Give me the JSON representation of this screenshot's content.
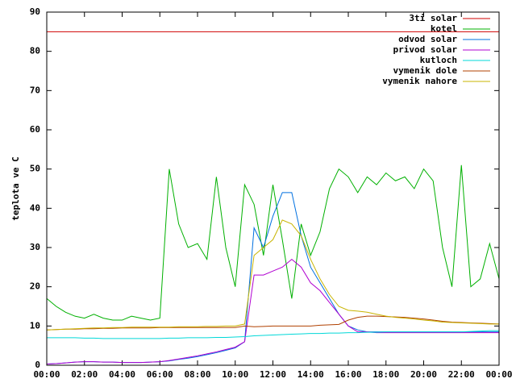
{
  "chart_data": {
    "type": "line",
    "ylabel": "teplota ve C",
    "x": [
      0,
      0.5,
      1,
      1.5,
      2,
      2.5,
      3,
      3.5,
      4,
      4.5,
      5,
      5.5,
      6,
      6.5,
      7,
      7.5,
      8,
      8.5,
      9,
      9.5,
      10,
      10.5,
      11,
      11.5,
      12,
      12.5,
      13,
      13.5,
      14,
      14.5,
      15,
      15.5,
      16,
      16.5,
      17,
      17.5,
      18,
      18.5,
      19,
      19.5,
      20,
      20.5,
      21,
      21.5,
      22,
      22.5,
      23,
      23.5,
      24
    ],
    "xlim": [
      0,
      24
    ],
    "xticks": [
      {
        "value": 0,
        "label": "00:00"
      },
      {
        "value": 2,
        "label": "02:00"
      },
      {
        "value": 4,
        "label": "04:00"
      },
      {
        "value": 6,
        "label": "06:00"
      },
      {
        "value": 8,
        "label": "08:00"
      },
      {
        "value": 10,
        "label": "10:00"
      },
      {
        "value": 12,
        "label": "12:00"
      },
      {
        "value": 14,
        "label": "14:00"
      },
      {
        "value": 16,
        "label": "16:00"
      },
      {
        "value": 18,
        "label": "18:00"
      },
      {
        "value": 20,
        "label": "20:00"
      },
      {
        "value": 22,
        "label": "22:00"
      },
      {
        "value": 24,
        "label": "00:00"
      }
    ],
    "ylim": [
      0,
      90
    ],
    "yticks": [
      0,
      10,
      20,
      30,
      40,
      50,
      60,
      70,
      80,
      90
    ],
    "legend": "top-right",
    "series": [
      {
        "name": "3ti solar",
        "color": "#d00000",
        "values": [
          85,
          85,
          85,
          85,
          85,
          85,
          85,
          85,
          85,
          85,
          85,
          85,
          85,
          85,
          85,
          85,
          85,
          85,
          85,
          85,
          85,
          85,
          85,
          85,
          85,
          85,
          85,
          85,
          85,
          85,
          85,
          85,
          85,
          85,
          85,
          85,
          85,
          85,
          85,
          85,
          85,
          85,
          85,
          85,
          85,
          85,
          85,
          85,
          85
        ]
      },
      {
        "name": "kotel",
        "color": "#00b000",
        "values": [
          17,
          15,
          13.5,
          12.5,
          12,
          13,
          12,
          11.5,
          11.5,
          12.5,
          12,
          11.5,
          12,
          50,
          36,
          30,
          31,
          27,
          48,
          30,
          20,
          46,
          41,
          28,
          46,
          32,
          17,
          36,
          28,
          34,
          45,
          50,
          48,
          44,
          48,
          46,
          49,
          47,
          48,
          45,
          50,
          47,
          30,
          20,
          51,
          20,
          22,
          31,
          22
        ]
      },
      {
        "name": "odvod solar",
        "color": "#0070e0",
        "values": [
          0.3,
          0.4,
          0.6,
          0.8,
          0.9,
          0.9,
          0.8,
          0.8,
          0.7,
          0.7,
          0.7,
          0.8,
          0.9,
          1.1,
          1.5,
          1.8,
          2.2,
          2.7,
          3.2,
          3.8,
          4.4,
          6,
          35,
          30,
          38,
          44,
          44,
          33,
          25,
          21,
          17,
          13,
          10,
          9,
          8.5,
          8.5,
          8.5,
          8.5,
          8.5,
          8.5,
          8.5,
          8.5,
          8.5,
          8.5,
          8.5,
          8.5,
          8.5,
          8.5,
          8.5
        ]
      },
      {
        "name": "privod solar",
        "color": "#b000d0",
        "values": [
          0.3,
          0.4,
          0.6,
          0.8,
          0.9,
          0.9,
          0.8,
          0.8,
          0.7,
          0.7,
          0.7,
          0.8,
          0.9,
          1.2,
          1.6,
          2,
          2.4,
          2.9,
          3.4,
          4,
          4.6,
          6,
          23,
          23,
          24,
          25,
          27,
          25,
          21,
          19,
          16,
          13,
          10,
          8.5,
          8.5,
          8.3,
          8.3,
          8.3,
          8.3,
          8.3,
          8.3,
          8.3,
          8.3,
          8.3,
          8.3,
          8.3,
          8.3,
          8.3,
          8.3
        ]
      },
      {
        "name": "kutloch",
        "color": "#00d8d8",
        "values": [
          7,
          7,
          7,
          7,
          6.9,
          6.9,
          6.8,
          6.8,
          6.8,
          6.8,
          6.8,
          6.8,
          6.8,
          6.9,
          6.9,
          7,
          7,
          7,
          7.1,
          7.1,
          7.2,
          7.3,
          7.5,
          7.6,
          7.7,
          7.8,
          7.9,
          8,
          8.1,
          8.1,
          8.2,
          8.2,
          8.3,
          8.3,
          8.4,
          8.4,
          8.5,
          8.5,
          8.5,
          8.5,
          8.5,
          8.5,
          8.5,
          8.5,
          8.5,
          8.6,
          8.7,
          8.8,
          8.8
        ]
      },
      {
        "name": "vymenik dole",
        "color": "#b04000",
        "values": [
          9,
          9.1,
          9.2,
          9.2,
          9.3,
          9.3,
          9.4,
          9.4,
          9.5,
          9.5,
          9.5,
          9.5,
          9.6,
          9.6,
          9.6,
          9.6,
          9.6,
          9.6,
          9.6,
          9.6,
          9.6,
          10,
          9.8,
          9.9,
          10,
          10,
          10,
          10,
          10,
          10.2,
          10.3,
          10.4,
          11.5,
          12.2,
          12.5,
          12.5,
          12.4,
          12.3,
          12.2,
          12,
          11.8,
          11.5,
          11.2,
          11,
          10.9,
          10.8,
          10.7,
          10.6,
          10.5
        ]
      },
      {
        "name": "vymenik nahore",
        "color": "#c8b400",
        "values": [
          9,
          9.1,
          9.2,
          9.3,
          9.4,
          9.5,
          9.5,
          9.6,
          9.6,
          9.7,
          9.7,
          9.7,
          9.7,
          9.7,
          9.8,
          9.8,
          9.8,
          9.9,
          9.9,
          10,
          10,
          10.5,
          28,
          30,
          32,
          37,
          36,
          33,
          27,
          22,
          18,
          15,
          14,
          13.8,
          13.5,
          13,
          12.5,
          12.2,
          12,
          11.8,
          11.5,
          11.3,
          11,
          10.9,
          10.8,
          10.7,
          10.6,
          10.5,
          10.5
        ]
      }
    ]
  }
}
